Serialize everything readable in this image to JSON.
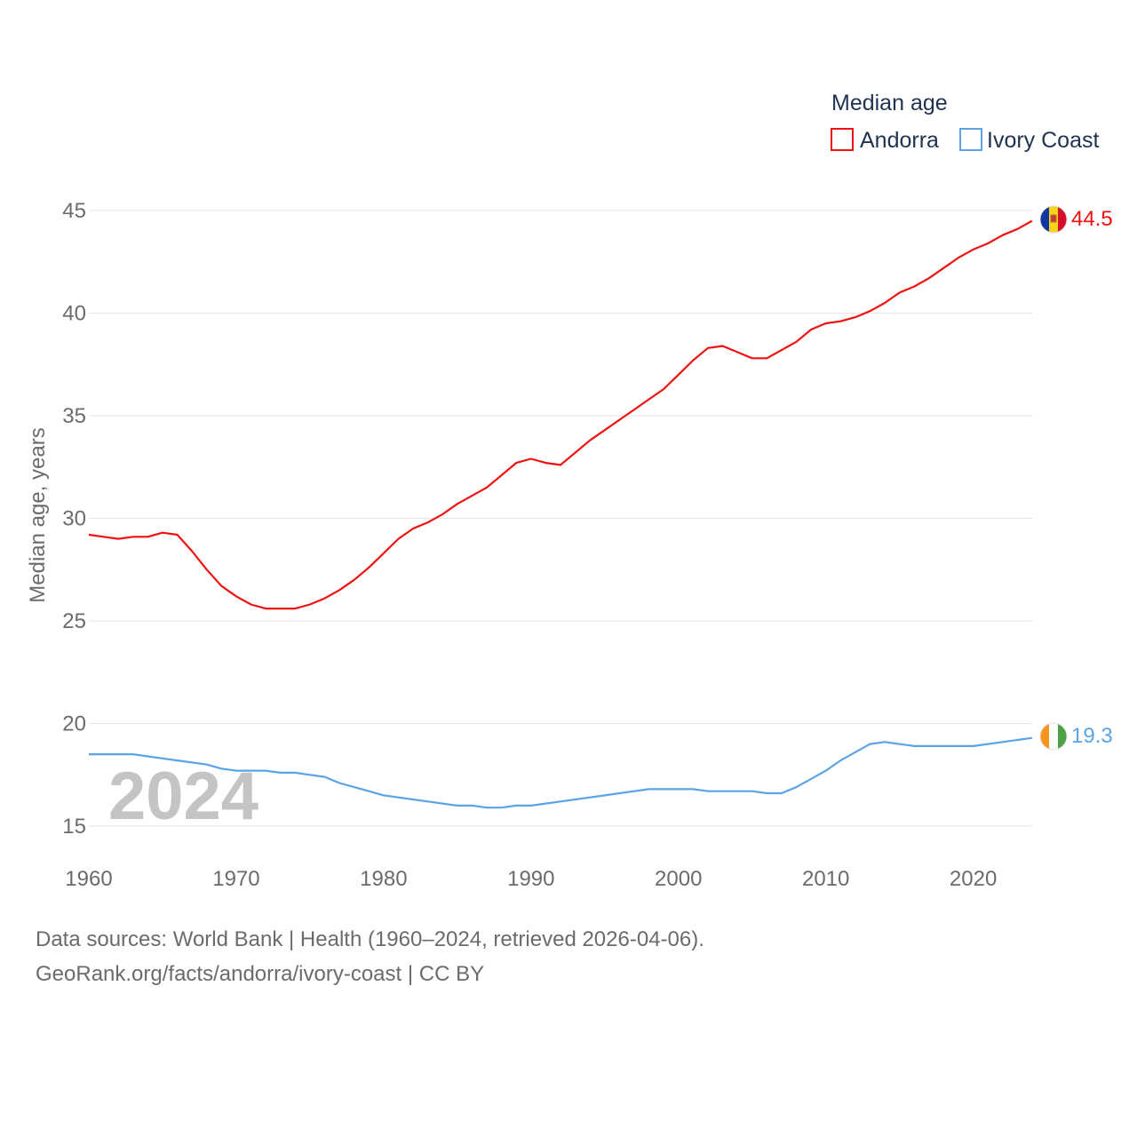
{
  "chart_data": {
    "type": "line",
    "legend_title": "Median age",
    "ylabel": "Median age, years",
    "ylim": [
      15,
      45
    ],
    "xlim": [
      1960,
      2024
    ],
    "yticks": [
      "15",
      "20",
      "25",
      "30",
      "35",
      "40",
      "45"
    ],
    "xticks": [
      "1960",
      "1970",
      "1980",
      "1990",
      "2000",
      "2010",
      "2020"
    ],
    "current_year": "2024",
    "series": [
      {
        "name": "Andorra",
        "color": "#ee1111",
        "end_label": "44.5",
        "flag": "andorra-flag-icon",
        "x": [
          1960,
          1961,
          1962,
          1963,
          1964,
          1965,
          1966,
          1967,
          1968,
          1969,
          1970,
          1971,
          1972,
          1973,
          1974,
          1975,
          1976,
          1977,
          1978,
          1979,
          1980,
          1981,
          1982,
          1983,
          1984,
          1985,
          1986,
          1987,
          1988,
          1989,
          1990,
          1991,
          1992,
          1993,
          1994,
          1995,
          1996,
          1997,
          1998,
          1999,
          2000,
          2001,
          2002,
          2003,
          2004,
          2005,
          2006,
          2007,
          2008,
          2009,
          2010,
          2011,
          2012,
          2013,
          2014,
          2015,
          2016,
          2017,
          2018,
          2019,
          2020,
          2021,
          2022,
          2023,
          2024
        ],
        "values": [
          29.2,
          29.1,
          29.0,
          29.1,
          29.1,
          29.3,
          29.2,
          28.4,
          27.5,
          26.7,
          26.2,
          25.8,
          25.6,
          25.6,
          25.6,
          25.8,
          26.1,
          26.5,
          27.0,
          27.6,
          28.3,
          29.0,
          29.5,
          29.8,
          30.2,
          30.7,
          31.1,
          31.5,
          32.1,
          32.7,
          32.9,
          32.7,
          32.6,
          33.2,
          33.8,
          34.3,
          34.8,
          35.3,
          35.8,
          36.3,
          37.0,
          37.7,
          38.3,
          38.4,
          38.1,
          37.8,
          37.8,
          38.2,
          38.6,
          39.2,
          39.5,
          39.6,
          39.8,
          40.1,
          40.5,
          41.0,
          41.3,
          41.7,
          42.2,
          42.7,
          43.1,
          43.4,
          43.8,
          44.1,
          44.5
        ]
      },
      {
        "name": "Ivory Coast",
        "color": "#5ba3e6",
        "end_label": "19.3",
        "flag": "ivory-coast-flag-icon",
        "x": [
          1960,
          1961,
          1962,
          1963,
          1964,
          1965,
          1966,
          1967,
          1968,
          1969,
          1970,
          1971,
          1972,
          1973,
          1974,
          1975,
          1976,
          1977,
          1978,
          1979,
          1980,
          1981,
          1982,
          1983,
          1984,
          1985,
          1986,
          1987,
          1988,
          1989,
          1990,
          1991,
          1992,
          1993,
          1994,
          1995,
          1996,
          1997,
          1998,
          1999,
          2000,
          2001,
          2002,
          2003,
          2004,
          2005,
          2006,
          2007,
          2008,
          2009,
          2010,
          2011,
          2012,
          2013,
          2014,
          2015,
          2016,
          2017,
          2018,
          2019,
          2020,
          2021,
          2022,
          2023,
          2024
        ],
        "values": [
          18.5,
          18.5,
          18.5,
          18.5,
          18.4,
          18.3,
          18.2,
          18.1,
          18.0,
          17.8,
          17.7,
          17.7,
          17.7,
          17.6,
          17.6,
          17.5,
          17.4,
          17.1,
          16.9,
          16.7,
          16.5,
          16.4,
          16.3,
          16.2,
          16.1,
          16.0,
          16.0,
          15.9,
          15.9,
          16.0,
          16.0,
          16.1,
          16.2,
          16.3,
          16.4,
          16.5,
          16.6,
          16.7,
          16.8,
          16.8,
          16.8,
          16.8,
          16.7,
          16.7,
          16.7,
          16.7,
          16.6,
          16.6,
          16.9,
          17.3,
          17.7,
          18.2,
          18.6,
          19.0,
          19.1,
          19.0,
          18.9,
          18.9,
          18.9,
          18.9,
          18.9,
          19.0,
          19.1,
          19.2,
          19.3
        ]
      }
    ]
  },
  "source": {
    "line1": "Data sources: World Bank | Health (1960–2024, retrieved 2026-04-06).",
    "line2": "GeoRank.org/facts/andorra/ivory-coast | CC BY"
  }
}
